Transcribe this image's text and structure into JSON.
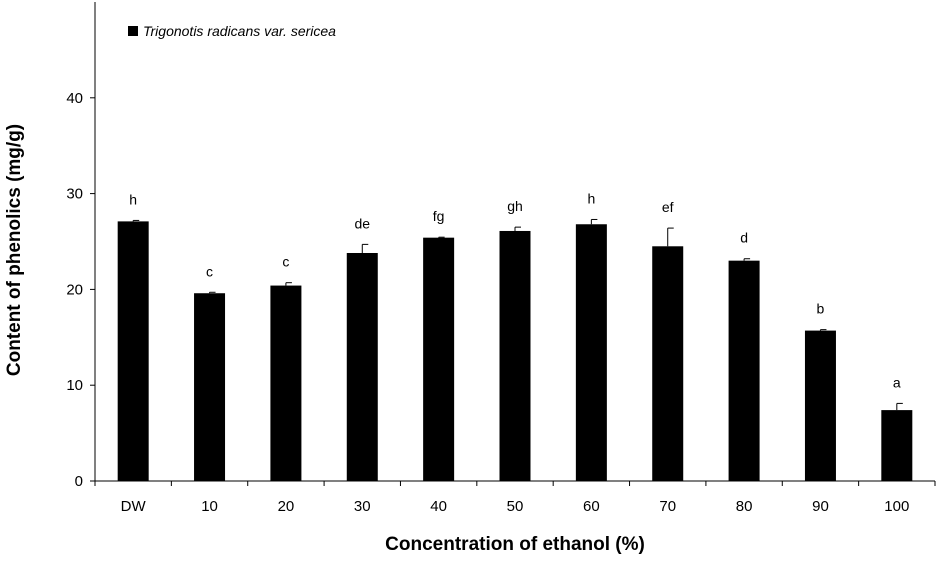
{
  "chart_data": {
    "type": "bar",
    "categories": [
      "DW",
      "10",
      "20",
      "30",
      "40",
      "50",
      "60",
      "70",
      "80",
      "90",
      "100"
    ],
    "series": [
      {
        "name": "Trigonotis radicans var. sericea",
        "values": [
          27.1,
          19.6,
          20.4,
          23.8,
          25.4,
          26.1,
          26.8,
          24.5,
          23.0,
          15.7,
          7.4
        ],
        "errors": [
          0.1,
          0.1,
          0.3,
          0.9,
          0.05,
          0.4,
          0.5,
          1.9,
          0.2,
          0.1,
          0.7
        ],
        "significance": [
          "h",
          "c",
          "c",
          "de",
          "fg",
          "gh",
          "h",
          "ef",
          "d",
          "b",
          "a"
        ],
        "color": "#000000"
      }
    ],
    "xlabel": "Concentration  of  ethanol (%)",
    "ylabel": "Content  of  phenolics  (mg/g)",
    "ylim": [
      0,
      50
    ],
    "yticks": [
      0,
      10,
      20,
      30,
      40
    ],
    "grid": false,
    "legend_position": "top-left"
  }
}
